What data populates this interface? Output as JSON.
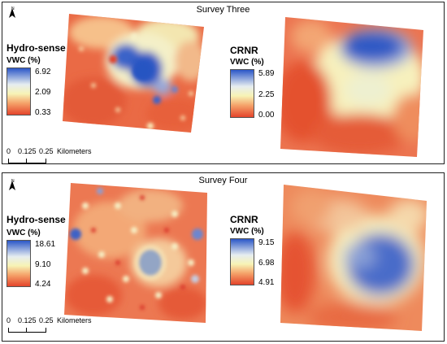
{
  "survey_three": {
    "title": "Survey Three",
    "hydro_legend": {
      "title": "Hydro-sense",
      "unit": "VWC (%)",
      "max": "6.92",
      "mid": "2.09",
      "min": "0.33"
    },
    "crnr_legend": {
      "title": "CRNR",
      "unit": "VWC (%)",
      "max": "5.89",
      "mid": "2.25",
      "min": "0.00"
    },
    "scale": {
      "zero": "0",
      "first": "0.125",
      "second": "0.25",
      "unit": "Kilometers"
    }
  },
  "survey_four": {
    "title": "Survey Four",
    "hydro_legend": {
      "title": "Hydro-sense",
      "unit": "VWC (%)",
      "max": "18.61",
      "mid": "9.10",
      "min": "4.24"
    },
    "crnr_legend": {
      "title": "CRNR",
      "unit": "VWC (%)",
      "max": "9.15",
      "mid": "6.98",
      "min": "4.91"
    },
    "scale": {
      "zero": "0",
      "first": "0.125",
      "second": "0.25",
      "unit": "Kilometers"
    }
  },
  "north_arrow": {
    "label": "N",
    "icon": "north-arrow-icon"
  },
  "colors": {
    "high": "#2b57c8",
    "mid": "#f7f3b5",
    "low": "#e4442b"
  }
}
